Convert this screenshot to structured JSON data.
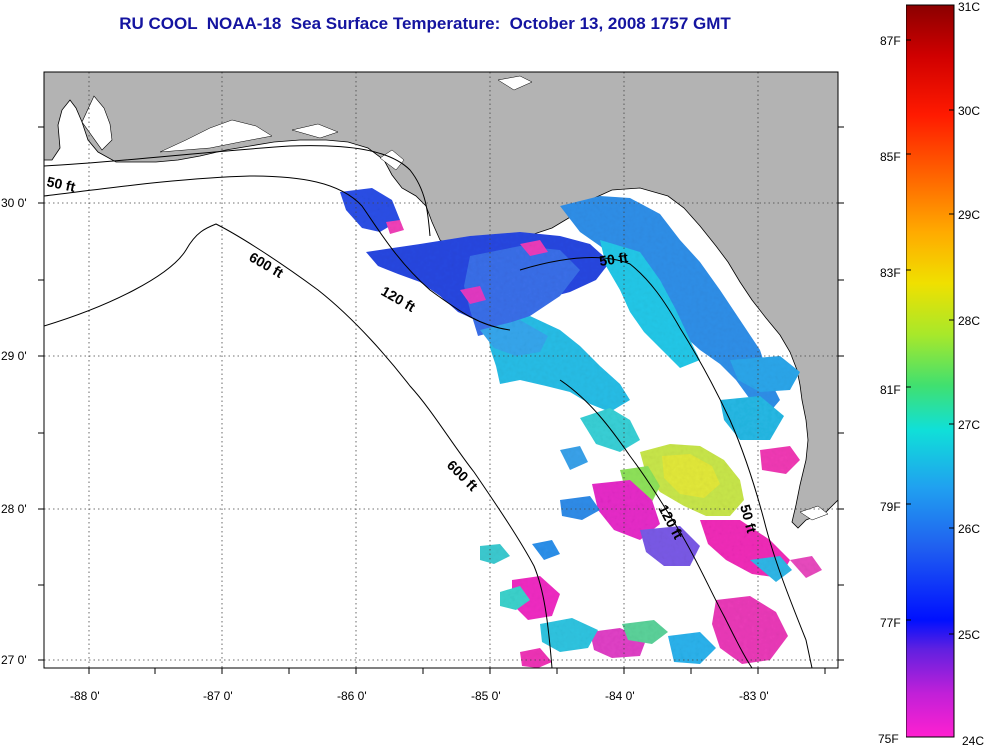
{
  "title": "RU COOL  NOAA-18  Sea Surface Temperature:  October 13, 2008 1757 GMT",
  "lon_labels": [
    "-88 0'",
    "-87 0'",
    "-86 0'",
    "-85 0'",
    "-84 0'",
    "-83 0'"
  ],
  "lat_labels": [
    "30 0'",
    "29 0'",
    "28 0'",
    "27 0'"
  ],
  "contours": {
    "c50_top": "50 ft",
    "c600_top": "600 ft",
    "c120_top": "120 ft",
    "c50_right": "50 ft",
    "c600_mid": "600 ft",
    "c120_bottom": "120 ft",
    "c50_bottom": "50 ft"
  },
  "colorbar": {
    "fahrenheit": [
      "87F",
      "85F",
      "83F",
      "81F",
      "79F",
      "77F",
      "75F"
    ],
    "celsius": [
      "31C",
      "30C",
      "29C",
      "28C",
      "27C",
      "26C",
      "25C",
      "24C"
    ],
    "range_c": [
      24,
      31
    ]
  },
  "colors": {
    "title": "#1414a0",
    "land": "#b3b3b3",
    "sea_no_data": "#ffffff"
  }
}
